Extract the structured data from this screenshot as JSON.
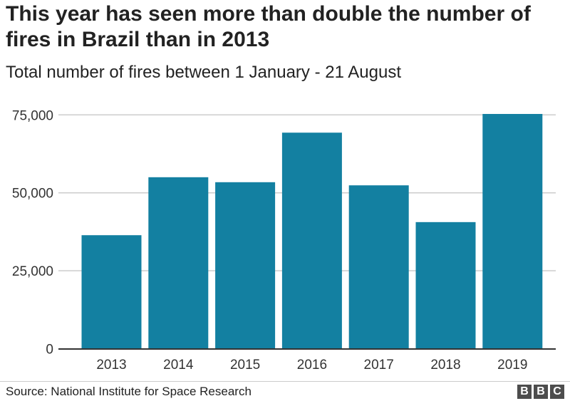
{
  "chart_data": {
    "type": "bar",
    "title": "This year has seen more than double the number of fires in Brazil than in 2013",
    "subtitle": "Total number of fires between 1 January - 21 August",
    "categories": [
      "2013",
      "2014",
      "2015",
      "2016",
      "2017",
      "2018",
      "2019"
    ],
    "values": [
      36400,
      55000,
      53400,
      69300,
      52400,
      40600,
      75300
    ],
    "ylim": [
      0,
      75000
    ],
    "yticks": [
      0,
      25000,
      50000,
      75000
    ],
    "ytick_labels": [
      "0",
      "25,000",
      "50,000",
      "75,000"
    ],
    "grid": true,
    "bar_color": "#1380A1",
    "xlabel": "",
    "ylabel": ""
  },
  "footer": {
    "source": "Source: National Institute for Space Research",
    "logo": "BBC",
    "logo_letters": [
      "B",
      "B",
      "C"
    ]
  }
}
